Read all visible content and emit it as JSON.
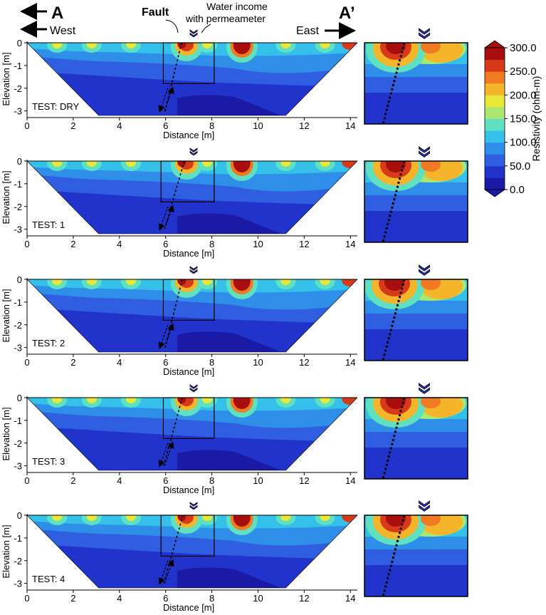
{
  "header": {
    "a_label": "A",
    "a_prime_label": "A’",
    "west_label": "West",
    "east_label": "East",
    "fault_label": "Fault",
    "water_label_line1": "Water income",
    "water_label_line2": "with permeameter"
  },
  "axes": {
    "ylabel": "Elevation [m]",
    "xlabel": "Distance [m]",
    "y_ticks": [
      "0",
      "-1",
      "-2",
      "-3"
    ],
    "x_ticks": [
      "0",
      "2",
      "4",
      "6",
      "8",
      "10",
      "12",
      "14"
    ]
  },
  "panels": [
    {
      "label": "TEST: DRY"
    },
    {
      "label": "TEST: 1"
    },
    {
      "label": "TEST: 2"
    },
    {
      "label": "TEST: 3"
    },
    {
      "label": "TEST: 4"
    }
  ],
  "colorbar": {
    "title": "Resistivity (ohm-m)",
    "ticks": [
      "300.0",
      "250.0",
      "200.0",
      "150.0",
      "100.0",
      "50.0",
      "0.0"
    ],
    "colors": [
      "#1a1aa6",
      "#2233cc",
      "#2f5fe0",
      "#2f8fe8",
      "#34c0e8",
      "#5fe0c0",
      "#a8e870",
      "#e8e83a",
      "#f5b52a",
      "#f07a22",
      "#d63a18",
      "#a80e0e"
    ]
  }
}
